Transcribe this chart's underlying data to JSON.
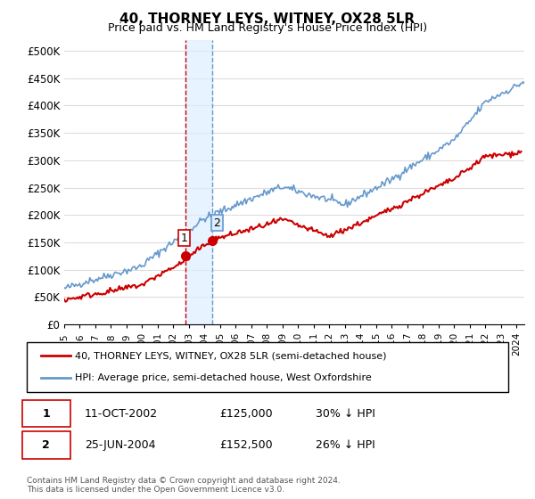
{
  "title": "40, THORNEY LEYS, WITNEY, OX28 5LR",
  "subtitle": "Price paid vs. HM Land Registry's House Price Index (HPI)",
  "ylabel_ticks": [
    "£0",
    "£50K",
    "£100K",
    "£150K",
    "£200K",
    "£250K",
    "£300K",
    "£350K",
    "£400K",
    "£450K",
    "£500K"
  ],
  "ytick_values": [
    0,
    50000,
    100000,
    150000,
    200000,
    250000,
    300000,
    350000,
    400000,
    450000,
    500000
  ],
  "ylim": [
    0,
    520000
  ],
  "xlim_start": 1995.0,
  "xlim_end": 2024.5,
  "hpi_color": "#6699cc",
  "price_color": "#cc0000",
  "transaction1_date": 2002.78,
  "transaction1_price": 125000,
  "transaction1_label": "1",
  "transaction2_date": 2004.48,
  "transaction2_price": 152500,
  "transaction2_label": "2",
  "legend_line1": "40, THORNEY LEYS, WITNEY, OX28 5LR (semi-detached house)",
  "legend_line2": "HPI: Average price, semi-detached house, West Oxfordshire",
  "table_row1": [
    "1",
    "11-OCT-2002",
    "£125,000",
    "30% ↓ HPI"
  ],
  "table_row2": [
    "2",
    "25-JUN-2004",
    "£152,500",
    "26% ↓ HPI"
  ],
  "footnote": "Contains HM Land Registry data © Crown copyright and database right 2024.\nThis data is licensed under the Open Government Licence v3.0.",
  "bg_color": "#ffffff",
  "grid_color": "#dddddd",
  "shade_color": "#ddeeff"
}
